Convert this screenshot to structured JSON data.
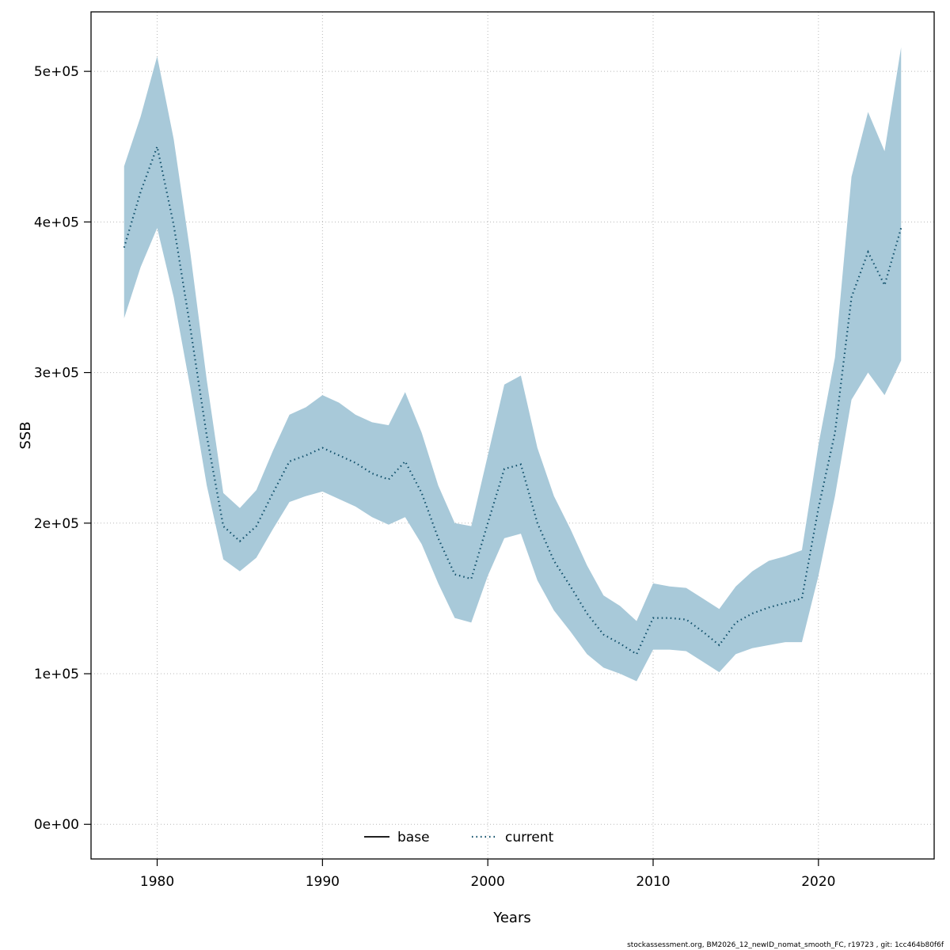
{
  "figure": {
    "footer": "stockassessment.org, BM2026_12_newID_nomat_smooth_FC, r19723 , git: 1cc464b80f6f"
  },
  "chart_data": {
    "type": "line",
    "title": "",
    "xlabel": "Years",
    "ylabel": "SSB",
    "grid": true,
    "xlim": [
      1976,
      2027
    ],
    "ylim": [
      -23000,
      539500
    ],
    "x_ticks": {
      "values": [
        1980,
        1990,
        2000,
        2010,
        2020
      ],
      "labels": [
        "1980",
        "1990",
        "2000",
        "2010",
        "2020"
      ]
    },
    "y_ticks": {
      "values": [
        0,
        100000,
        200000,
        300000,
        400000,
        500000
      ],
      "labels": [
        "0e+00",
        "1e+05",
        "2e+05",
        "3e+05",
        "4e+05",
        "5e+05"
      ]
    },
    "colors": {
      "band": "#a8c9d9",
      "line": "#11506b",
      "grid": "#b8b8b8"
    },
    "legend": {
      "position": "bottom-center",
      "entries": [
        {
          "label": "base",
          "style": "solid",
          "color": "#000000"
        },
        {
          "label": "current",
          "style": "dotted",
          "color": "#11506b"
        }
      ]
    },
    "x": [
      1978,
      1979,
      1980,
      1981,
      1982,
      1983,
      1984,
      1985,
      1986,
      1987,
      1988,
      1989,
      1990,
      1991,
      1992,
      1993,
      1994,
      1995,
      1996,
      1997,
      1998,
      1999,
      2000,
      2001,
      2002,
      2003,
      2004,
      2005,
      2006,
      2007,
      2008,
      2009,
      2010,
      2011,
      2012,
      2013,
      2014,
      2015,
      2016,
      2017,
      2018,
      2019,
      2020,
      2021,
      2022,
      2023,
      2024,
      2025
    ],
    "series": [
      {
        "name": "current",
        "values": [
          383000,
          420000,
          450000,
          398000,
          330000,
          258000,
          198000,
          188000,
          198000,
          220000,
          241000,
          245000,
          250000,
          245000,
          240000,
          233000,
          229000,
          241000,
          220000,
          190000,
          166000,
          163000,
          200000,
          236000,
          239000,
          200000,
          175000,
          158000,
          140000,
          126000,
          120000,
          113000,
          137000,
          137000,
          136000,
          128000,
          119000,
          134000,
          140000,
          144000,
          147000,
          150000,
          210000,
          260000,
          350000,
          380000,
          358000,
          396000
        ]
      },
      {
        "name": "current_upper",
        "values": [
          437000,
          470000,
          510000,
          455000,
          380000,
          295000,
          220000,
          210000,
          222000,
          248000,
          272000,
          277000,
          285000,
          280000,
          272000,
          267000,
          265000,
          287000,
          260000,
          225000,
          200000,
          198000,
          245000,
          292000,
          298000,
          250000,
          218000,
          196000,
          172000,
          152000,
          145000,
          135000,
          160000,
          158000,
          157000,
          150000,
          143000,
          158000,
          168000,
          175000,
          178000,
          182000,
          252000,
          310000,
          430000,
          473000,
          447000,
          516000
        ]
      },
      {
        "name": "current_lower",
        "values": [
          336000,
          370000,
          396000,
          350000,
          290000,
          225000,
          176000,
          168000,
          177000,
          196000,
          214000,
          218000,
          221000,
          216000,
          211000,
          204000,
          199000,
          204000,
          186000,
          160000,
          137000,
          134000,
          165000,
          190000,
          193000,
          162000,
          142000,
          128000,
          113000,
          104000,
          100000,
          95000,
          116000,
          116000,
          115000,
          108000,
          101000,
          113000,
          117000,
          119000,
          121000,
          121000,
          165000,
          218000,
          282000,
          300000,
          285000,
          308000
        ]
      }
    ]
  }
}
